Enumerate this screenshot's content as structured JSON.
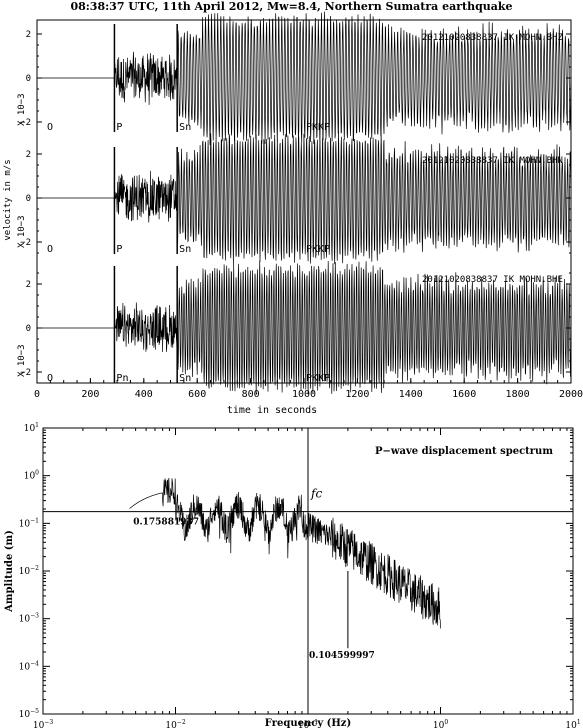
{
  "title": "08:38:37 UTC, 11th April 2012, Mw=8.4, Northern Sumatra earthquake",
  "chart_data": [
    {
      "type": "line",
      "name": "seismograms",
      "ylabel": "velocity in m/s",
      "xlabel": "time in seconds",
      "xlim": [
        0,
        2000
      ],
      "x_ticks": [
        "0",
        "200",
        "400",
        "600",
        "800",
        "1000",
        "1200",
        "1400",
        "1600",
        "1800",
        "2000"
      ],
      "panels": [
        {
          "station_label": "20121020838837  IK  MOHN.BHZ",
          "scale_label": "X 10−3",
          "y_ticks": [
            "2",
            "0",
            "−2"
          ],
          "ylim": [
            -3,
            3
          ],
          "phase_labels": [
            {
              "text": "O",
              "t": 30
            },
            {
              "text": "P",
              "t": 290
            },
            {
              "text": "Sn",
              "t": 525
            },
            {
              "text": "PKKP",
              "t": 1000
            }
          ]
        },
        {
          "station_label": "20121020838837  IK  MOHN.BHN",
          "scale_label": "X 10−3",
          "y_ticks": [
            "2",
            "0",
            "−2"
          ],
          "ylim": [
            -3,
            3
          ],
          "phase_labels": [
            {
              "text": "O",
              "t": 30
            },
            {
              "text": "P",
              "t": 290
            },
            {
              "text": "Sn",
              "t": 525
            },
            {
              "text": "PKKP",
              "t": 1000
            }
          ]
        },
        {
          "station_label": "20121020838837  IK  MOHN.BHE",
          "scale_label": "X 10−3",
          "y_ticks": [
            "2",
            "0",
            "−2"
          ],
          "ylim": [
            -3,
            3
          ],
          "phase_labels": [
            {
              "text": "O",
              "t": 30
            },
            {
              "text": "Pn",
              "t": 290
            },
            {
              "text": "Sn",
              "t": 525
            },
            {
              "text": "PKKP",
              "t": 1000
            }
          ]
        }
      ]
    },
    {
      "type": "line",
      "name": "spectrum",
      "title": "P−wave displacement spectrum",
      "xlabel": "Frequency (Hz)",
      "ylabel": "Amplitude (m)",
      "x_scale": "log",
      "y_scale": "log",
      "xlim": [
        0.001,
        10
      ],
      "ylim": [
        1e-05,
        10
      ],
      "x_tick_exponents": [
        -3,
        -2,
        -1,
        0,
        1
      ],
      "y_tick_exponents": [
        1,
        0,
        -1,
        -2,
        -3,
        -4,
        -5
      ],
      "fc_label": "fc",
      "fc_frequency": 0.1,
      "plateau_level": 0.175881937,
      "plateau_label": "0.175881937",
      "corner_annotation_label": "0.104599997",
      "corner_annotation_frequency": 0.2,
      "spectrum_frequency_range": [
        0.0045,
        1.0
      ]
    }
  ]
}
